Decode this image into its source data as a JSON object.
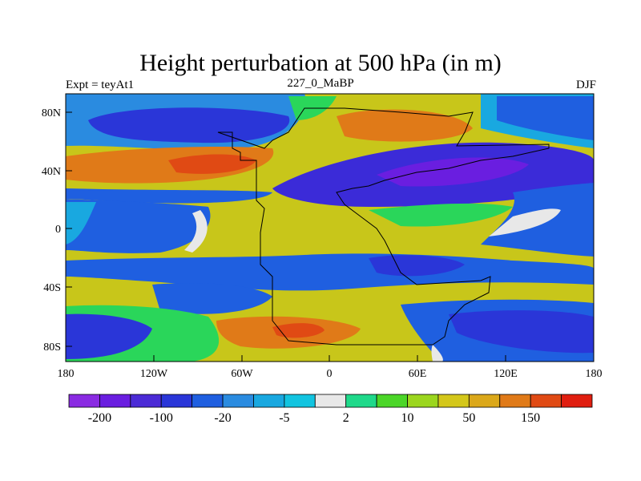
{
  "title": "Height perturbation at 500 hPa (in m)",
  "left_label": "Expt = teyAt1",
  "center_label": "227_0_MaBP",
  "right_label": "DJF",
  "y_ticks": [
    "80N",
    "40N",
    "0",
    "40S",
    "80S"
  ],
  "x_ticks": [
    "180",
    "120W",
    "60W",
    "0",
    "60E",
    "120E",
    "180"
  ],
  "colorbar": {
    "colors": [
      "#8a2be2",
      "#6a1ee0",
      "#4b2bd6",
      "#2a36d8",
      "#1f5fe0",
      "#2a8be0",
      "#19a8e0",
      "#12c4e0",
      "#e8e8e8",
      "#1fd98a",
      "#4bd628",
      "#9bd61e",
      "#d4c71a",
      "#dba81a",
      "#e07a18",
      "#e04a14",
      "#e01e10"
    ],
    "labels": [
      "-200",
      "-100",
      "-20",
      "-5",
      "2",
      "10",
      "50",
      "150"
    ]
  },
  "palette": {
    "strong_neg": "#3b2bd8",
    "neg": "#2a5fe0",
    "weak_neg": "#1fa8e0",
    "zero": "#e8e8e8",
    "weak_pos": "#2ad65a",
    "pos": "#c8c61a",
    "strong_pos": "#e07a18",
    "max_pos": "#e04a14"
  }
}
